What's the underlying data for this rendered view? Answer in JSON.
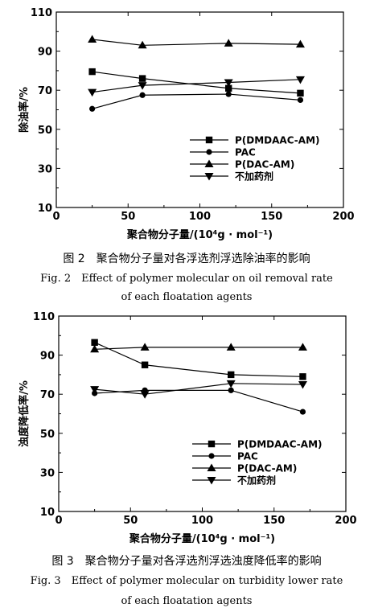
{
  "chart_data": [
    {
      "type": "line",
      "x": [
        25,
        60,
        120,
        170
      ],
      "series": [
        {
          "name": "P(DMDAAC-AM)",
          "marker": "square",
          "values": [
            79.5,
            76.0,
            71.0,
            68.5
          ]
        },
        {
          "name": "PAC",
          "marker": "circle",
          "values": [
            60.5,
            67.5,
            68.0,
            65.0
          ]
        },
        {
          "name": "P(DAC-AM)",
          "marker": "triangle-up",
          "values": [
            96.0,
            93.0,
            94.0,
            93.5
          ]
        },
        {
          "name": "不加药剂",
          "marker": "triangle-down",
          "values": [
            69.0,
            72.5,
            74.0,
            75.5
          ]
        }
      ],
      "xlabel": "聚合物分子量/(10⁴g · mol⁻¹)",
      "ylabel": "除油率/%",
      "xlim": [
        0,
        200
      ],
      "ylim": [
        10,
        110
      ],
      "xticks": [
        "0",
        "50",
        "100",
        "150",
        "200"
      ],
      "yticks": [
        "10",
        "30",
        "50",
        "70",
        "90",
        "110"
      ],
      "grid": false,
      "legend": "bottom-right",
      "caption_zh": "图 2　聚合物分子量对各浮选剂浮选除油率的影响",
      "caption_en_1": "Fig. 2　Effect of polymer molecular on oil removal rate",
      "caption_en_2": "of each floatation agents"
    },
    {
      "type": "line",
      "x": [
        25,
        60,
        120,
        170
      ],
      "series": [
        {
          "name": "P(DMDAAC-AM)",
          "marker": "square",
          "values": [
            96.5,
            85.0,
            80.0,
            79.0
          ]
        },
        {
          "name": "PAC",
          "marker": "circle",
          "values": [
            70.5,
            72.0,
            72.0,
            61.0
          ]
        },
        {
          "name": "P(DAC-AM)",
          "marker": "triangle-up",
          "values": [
            93.0,
            94.0,
            94.0,
            94.0
          ]
        },
        {
          "name": "不加药剂",
          "marker": "triangle-down",
          "values": [
            72.5,
            70.0,
            75.5,
            75.0
          ]
        }
      ],
      "xlabel": "聚合物分子量/(10⁴g · mol⁻¹)",
      "ylabel": "浊度降低率/%",
      "xlim": [
        0,
        200
      ],
      "ylim": [
        10,
        110
      ],
      "xticks": [
        "0",
        "50",
        "100",
        "150",
        "200"
      ],
      "yticks": [
        "10",
        "30",
        "50",
        "70",
        "90",
        "110"
      ],
      "grid": false,
      "legend": "bottom-right",
      "caption_zh": "图 3　聚合物分子量对各浮选剂浮选浊度降低率的影响",
      "caption_en_1": "Fig. 3　Effect of polymer molecular on turbidity lower rate",
      "caption_en_2": "of each floatation agents"
    }
  ]
}
